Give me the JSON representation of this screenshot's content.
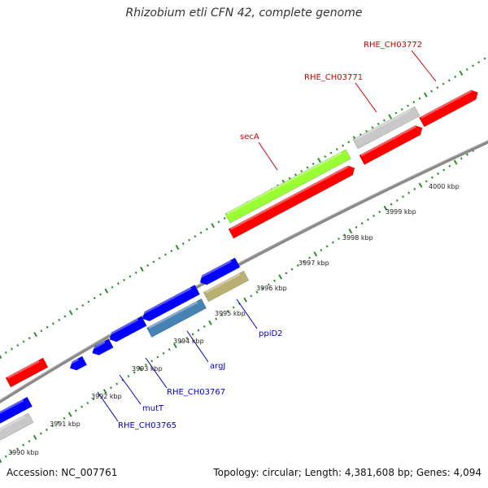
{
  "title": "Rhizobium etli CFN 42, complete genome",
  "footer": {
    "accession": "Accession: NC_007761",
    "summary": "Topology: circular; Length: 4,381,608 bp; Genes: 4,094"
  },
  "colors": {
    "backbone": "#888888",
    "forward_gene": "#ff0000",
    "reverse_gene": "#0000ff",
    "highlight_green": "#99ff33",
    "grey_gene": "#c8c8c8",
    "steel_blue_gene": "#4682b4",
    "olive_gene": "#b8b070",
    "dots": "#2e8b2e",
    "top_label": "#cc0000",
    "bottom_label": "#0000cc"
  },
  "scale_ticks": [
    {
      "label": "3990 kbp"
    },
    {
      "label": "3991 kbp"
    },
    {
      "label": "3992 kbp"
    },
    {
      "label": "3993 kbp"
    },
    {
      "label": "3994 kbp"
    },
    {
      "label": "3995 kbp"
    },
    {
      "label": "3996 kbp"
    },
    {
      "label": "3997 kbp"
    },
    {
      "label": "3998 kbp"
    },
    {
      "label": "3999 kbp"
    },
    {
      "label": "4000 kbp"
    }
  ],
  "gene_labels": [
    {
      "text": "RHE_CH03772",
      "side": "top"
    },
    {
      "text": "RHE_CH03771",
      "side": "top"
    },
    {
      "text": "secA",
      "side": "top"
    },
    {
      "text": "ppiD2",
      "side": "bottom"
    },
    {
      "text": "argJ",
      "side": "bottom"
    },
    {
      "text": "RHE_CH03767",
      "side": "bottom"
    },
    {
      "text": "mutT",
      "side": "bottom"
    },
    {
      "text": "RHE_CH03765",
      "side": "bottom"
    }
  ]
}
